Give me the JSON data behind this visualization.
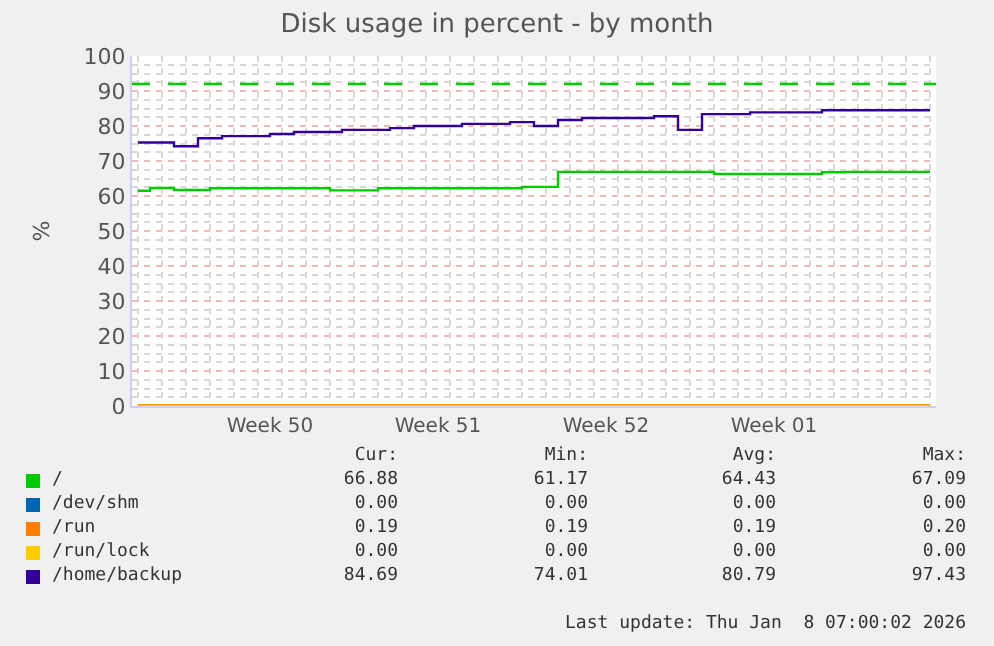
{
  "chart_data": {
    "type": "step",
    "title": "Disk usage in percent - by month",
    "ylabel": "%",
    "categories": [
      null,
      null,
      null,
      null,
      null,
      null,
      null,
      null,
      null,
      null,
      null,
      "Week 50",
      null,
      null,
      null,
      null,
      null,
      null,
      null,
      null,
      null,
      null,
      null,
      null,
      null,
      "Week 51",
      null,
      null,
      null,
      null,
      null,
      null,
      null,
      null,
      null,
      null,
      null,
      null,
      null,
      "Week 52",
      null,
      null,
      null,
      null,
      null,
      null,
      null,
      null,
      null,
      null,
      null,
      null,
      null,
      "Week 01",
      null,
      null,
      null,
      null,
      null,
      null,
      null,
      null,
      null,
      null,
      null,
      null,
      null
    ],
    "ylim": [
      0,
      100
    ],
    "yticks": [
      0,
      10,
      20,
      30,
      40,
      50,
      60,
      70,
      80,
      90,
      100
    ],
    "grid": true,
    "legend": "bottom",
    "marker": "none",
    "line_style": "solid",
    "ref_lines": [
      {
        "axis": "y",
        "value": 92,
        "color": "#00cc00",
        "line_style": "dashed"
      }
    ],
    "series": [
      {
        "name": "/",
        "color": "#00cc00",
        "values": [
          61.5,
          62.3,
          62.3,
          61.7,
          61.7,
          61.7,
          62.2,
          62.2,
          62.2,
          62.2,
          62.2,
          62.2,
          62.2,
          62.2,
          62.2,
          62.2,
          61.6,
          61.6,
          61.6,
          61.6,
          62.2,
          62.2,
          62.2,
          62.2,
          62.2,
          62.2,
          62.2,
          62.2,
          62.2,
          62.2,
          62.2,
          62.2,
          62.6,
          62.6,
          62.6,
          66.9,
          66.9,
          66.9,
          66.9,
          66.9,
          66.9,
          66.9,
          66.9,
          66.9,
          66.9,
          66.9,
          66.9,
          66.9,
          66.3,
          66.3,
          66.3,
          66.3,
          66.3,
          66.3,
          66.3,
          66.3,
          66.3,
          66.8,
          66.8,
          66.9,
          66.9,
          66.9,
          66.9,
          66.9,
          66.9,
          66.9,
          66.9
        ]
      },
      {
        "name": "/dev/shm",
        "color": "#0066b3",
        "values": [
          null,
          null,
          null,
          null,
          null,
          null,
          null,
          null,
          null,
          null,
          null,
          null,
          null,
          null,
          null,
          null,
          null,
          null,
          null,
          null,
          null,
          null,
          null,
          null,
          null,
          null,
          null,
          null,
          null,
          null,
          null,
          null,
          null,
          null,
          null,
          null,
          null,
          null,
          null,
          null,
          null,
          null,
          null,
          null,
          null,
          null,
          null,
          null,
          null,
          null,
          null,
          null,
          null,
          null,
          null,
          null,
          null,
          null,
          null,
          null,
          null,
          null,
          null,
          null,
          null,
          null,
          null
        ]
      },
      {
        "name": "/run",
        "color": "#ff8000",
        "values": [
          0.2,
          0.2,
          0.2,
          0.2,
          0.2,
          0.2,
          0.2,
          0.2,
          0.2,
          0.2,
          0.2,
          0.2,
          0.2,
          0.2,
          0.2,
          0.2,
          0.2,
          0.2,
          0.2,
          0.2,
          0.2,
          0.2,
          0.2,
          0.2,
          0.2,
          0.2,
          0.2,
          0.2,
          0.2,
          0.2,
          0.2,
          0.2,
          0.2,
          0.2,
          0.2,
          0.2,
          0.2,
          0.2,
          0.2,
          0.2,
          0.2,
          0.2,
          0.2,
          0.2,
          0.2,
          0.2,
          0.2,
          0.2,
          0.2,
          0.2,
          0.2,
          0.2,
          0.2,
          0.2,
          0.2,
          0.2,
          0.2,
          0.2,
          0.2,
          0.2,
          0.2,
          0.2,
          0.2,
          0.2,
          0.2,
          0.2,
          0.2
        ]
      },
      {
        "name": "/run/lock",
        "color": "#ffcc00",
        "values": [
          0,
          0,
          0,
          0,
          0,
          0,
          0,
          0,
          0,
          0,
          0,
          0,
          0,
          0,
          0,
          0,
          0,
          0,
          0,
          0,
          0,
          0,
          0,
          0,
          0,
          0,
          0,
          0,
          0,
          0,
          0,
          0,
          0,
          0,
          0,
          0,
          0,
          0,
          0,
          0,
          0,
          0,
          0,
          0,
          0,
          0,
          0,
          0,
          0,
          0,
          0,
          0,
          0,
          0,
          0,
          0,
          0,
          0,
          0,
          0,
          0,
          0,
          0,
          0,
          0,
          0,
          0
        ]
      },
      {
        "name": "/home/backup",
        "color": "#330099",
        "values": [
          75.3,
          75.3,
          75.3,
          74.2,
          74.2,
          76.5,
          76.5,
          77.1,
          77.1,
          77.1,
          77.1,
          77.7,
          77.7,
          78.3,
          78.3,
          78.3,
          78.3,
          78.9,
          78.9,
          78.9,
          78.9,
          79.4,
          79.4,
          80.0,
          80.0,
          80.0,
          80.0,
          80.6,
          80.6,
          80.6,
          80.6,
          81.1,
          81.1,
          80.0,
          80.0,
          81.7,
          81.7,
          82.3,
          82.3,
          82.3,
          82.3,
          82.3,
          82.3,
          82.8,
          82.8,
          78.9,
          78.9,
          83.4,
          83.4,
          83.4,
          83.4,
          83.9,
          83.9,
          83.9,
          83.9,
          83.9,
          83.9,
          84.5,
          84.5,
          84.5,
          84.5,
          84.5,
          84.5,
          84.5,
          84.5,
          84.5,
          84.5
        ]
      }
    ],
    "annotations": [
      "Cur:",
      "Min:",
      "Avg:",
      "Max:",
      "66.88",
      "61.17",
      "64.43",
      "67.09",
      "0.00",
      "0.00",
      "0.00",
      "0.00",
      "0.19",
      "0.19",
      "0.19",
      "0.20",
      "0.00",
      "0.00",
      "0.00",
      "0.00",
      "84.69",
      "74.01",
      "80.79",
      "97.43",
      "Last update: Thu Jan  8 07:00:02 2026"
    ]
  }
}
